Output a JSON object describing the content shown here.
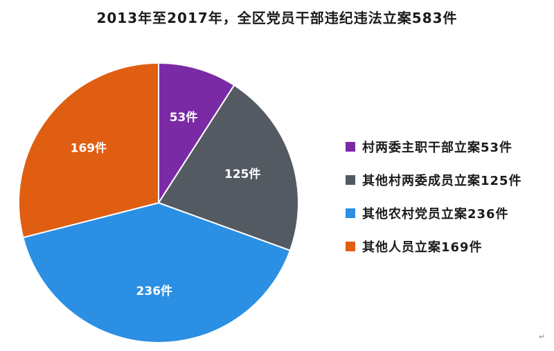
{
  "chart_data": {
    "type": "pie",
    "title": "2013年至2017年，全区党员干部违纪违法立案583件",
    "slices": [
      {
        "legend": "村两委主职干部立案53件",
        "label": "53件",
        "value": 53,
        "color": "#7b2aa6"
      },
      {
        "legend": "其他村两委成员立案125件",
        "label": "125件",
        "value": 125,
        "color": "#535a62"
      },
      {
        "legend": "其他农村党员立案236件",
        "label": "236件",
        "value": 236,
        "color": "#2b8fe3"
      },
      {
        "legend": "其他人员立案169件",
        "label": "169件",
        "value": 169,
        "color": "#e05e12"
      }
    ],
    "start_angle_deg": 0,
    "direction": "clockwise",
    "legend_position": "right"
  },
  "return_mark": "↵"
}
